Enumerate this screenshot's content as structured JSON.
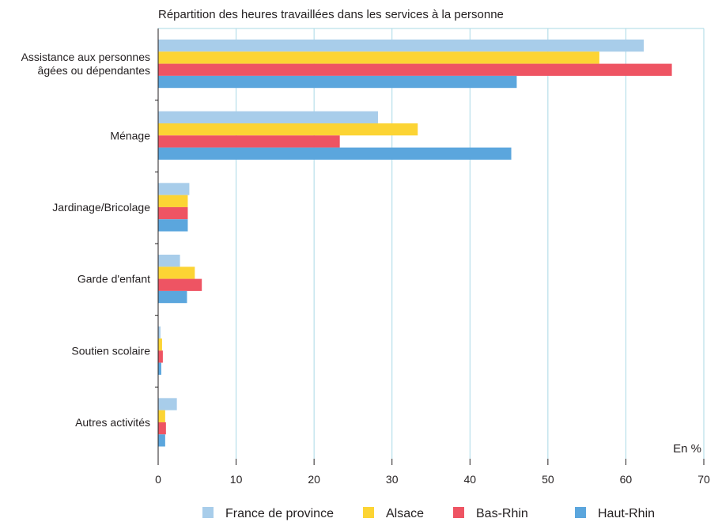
{
  "chart_data": {
    "type": "bar",
    "orientation": "horizontal",
    "title": "Répartition des heures travaillées dans les services à la personne",
    "unit_label": "En %",
    "xlim": [
      0,
      70
    ],
    "xticks": [
      "0",
      "10",
      "20",
      "30",
      "40",
      "50",
      "60",
      "70"
    ],
    "xtick_values": [
      0,
      10,
      20,
      30,
      40,
      50,
      60,
      70
    ],
    "grid": "vertical",
    "legend_position": "bottom",
    "categories": [
      [
        "Assistance aux personnes",
        "âgées ou dépendantes"
      ],
      [
        "Ménage"
      ],
      [
        "Jardinage/Bricolage"
      ],
      [
        "Garde d'enfant"
      ],
      [
        "Soutien scolaire"
      ],
      [
        "Autres activités"
      ]
    ],
    "series": [
      {
        "name": "France de province",
        "color": "#a8cdea",
        "values": [
          62.3,
          28.2,
          4.0,
          2.8,
          0.3,
          2.4
        ]
      },
      {
        "name": "Alsace",
        "color": "#fcd434",
        "values": [
          56.6,
          33.3,
          3.8,
          4.7,
          0.5,
          0.9
        ]
      },
      {
        "name": "Bas-Rhin",
        "color": "#ee5463",
        "values": [
          65.9,
          23.3,
          3.8,
          5.6,
          0.6,
          1.0
        ]
      },
      {
        "name": "Haut-Rhin",
        "color": "#5ba6dd",
        "values": [
          46.0,
          45.3,
          3.8,
          3.7,
          0.4,
          0.9
        ]
      }
    ],
    "colors": {
      "grid": "#a9d9e6",
      "axis": "#231f20"
    }
  }
}
